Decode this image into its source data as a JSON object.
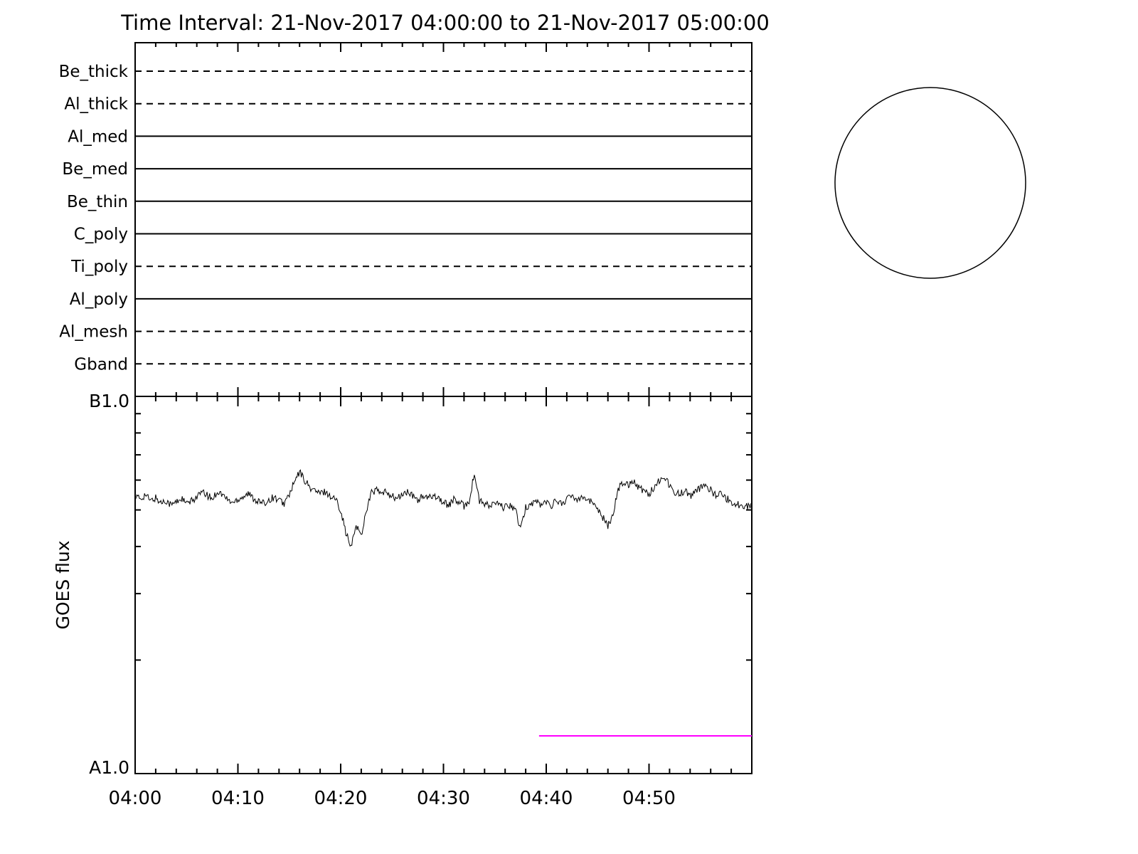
{
  "chart_data": [
    {
      "type": "line",
      "panel": "xrt-filter-timeline",
      "title": "Time Interval: 21-Nov-2017 04:00:00 to 21-Nov-2017 05:00:00",
      "x_range_minutes": [
        0,
        60
      ],
      "x_minor_tick_min": 2,
      "x_major_tick_min": 10,
      "rows": [
        {
          "label": "Be_thick",
          "line_style": "dashed",
          "start_min": 0,
          "end_min": 60
        },
        {
          "label": "Al_thick",
          "line_style": "dashed",
          "start_min": 0,
          "end_min": 60
        },
        {
          "label": "Al_med",
          "line_style": "solid",
          "start_min": 0,
          "end_min": 60
        },
        {
          "label": "Be_med",
          "line_style": "solid",
          "start_min": 0,
          "end_min": 60
        },
        {
          "label": "Be_thin",
          "line_style": "solid",
          "start_min": 0,
          "end_min": 60
        },
        {
          "label": "C_poly",
          "line_style": "solid",
          "start_min": 0,
          "end_min": 60
        },
        {
          "label": "Ti_poly",
          "line_style": "dashed",
          "start_min": 0,
          "end_min": 60
        },
        {
          "label": "Al_poly",
          "line_style": "solid",
          "start_min": 0,
          "end_min": 60
        },
        {
          "label": "Al_mesh",
          "line_style": "dashed",
          "start_min": 0,
          "end_min": 60
        },
        {
          "label": "Gband",
          "line_style": "dashed",
          "start_min": 0,
          "end_min": 60
        }
      ]
    },
    {
      "type": "line",
      "panel": "goes-flux",
      "ylabel": "GOES flux",
      "y_axis": {
        "top_label": "B1.0",
        "bottom_label": "A1.0",
        "scale": "log10, GOES class A1.0 to B1.0"
      },
      "x_range_minutes": [
        0,
        60
      ],
      "x_minor_tick_min": 2,
      "x_major_tick_min": 10,
      "x_tick_labels": [
        "04:00",
        "04:10",
        "04:20",
        "04:30",
        "04:40",
        "04:50"
      ],
      "series": [
        {
          "name": "goes-flux",
          "color": "#000000",
          "x_start_min": 0,
          "x_step_min": 0.5,
          "values_unit": "fraction of A1.0-B1.0 log range",
          "values": [
            0.735,
            0.728,
            0.74,
            0.722,
            0.731,
            0.718,
            0.725,
            0.712,
            0.72,
            0.73,
            0.715,
            0.722,
            0.735,
            0.745,
            0.738,
            0.728,
            0.748,
            0.74,
            0.726,
            0.718,
            0.728,
            0.735,
            0.742,
            0.73,
            0.722,
            0.715,
            0.726,
            0.733,
            0.724,
            0.716,
            0.74,
            0.772,
            0.8,
            0.778,
            0.758,
            0.75,
            0.742,
            0.748,
            0.735,
            0.728,
            0.7,
            0.64,
            0.598,
            0.66,
            0.63,
            0.7,
            0.745,
            0.752,
            0.74,
            0.748,
            0.735,
            0.728,
            0.74,
            0.746,
            0.735,
            0.726,
            0.735,
            0.728,
            0.74,
            0.732,
            0.718,
            0.712,
            0.726,
            0.718,
            0.71,
            0.722,
            0.795,
            0.722,
            0.715,
            0.708,
            0.718,
            0.71,
            0.705,
            0.712,
            0.7,
            0.645,
            0.705,
            0.715,
            0.722,
            0.712,
            0.72,
            0.712,
            0.724,
            0.716,
            0.728,
            0.735,
            0.728,
            0.738,
            0.726,
            0.718,
            0.705,
            0.68,
            0.655,
            0.69,
            0.755,
            0.772,
            0.768,
            0.776,
            0.76,
            0.75,
            0.742,
            0.758,
            0.778,
            0.79,
            0.762,
            0.748,
            0.74,
            0.752,
            0.735,
            0.745,
            0.758,
            0.765,
            0.752,
            0.738,
            0.742,
            0.73,
            0.722,
            0.712,
            0.715,
            0.708,
            0.712
          ]
        },
        {
          "name": "event-duration-line",
          "color": "#ff00ff",
          "points_min_level": [
            [
              39.3,
              0.1
            ],
            [
              60.0,
              0.1
            ]
          ]
        }
      ]
    }
  ],
  "sun_disk": {
    "present": true,
    "description": "Empty solar limb circle, upper right"
  }
}
